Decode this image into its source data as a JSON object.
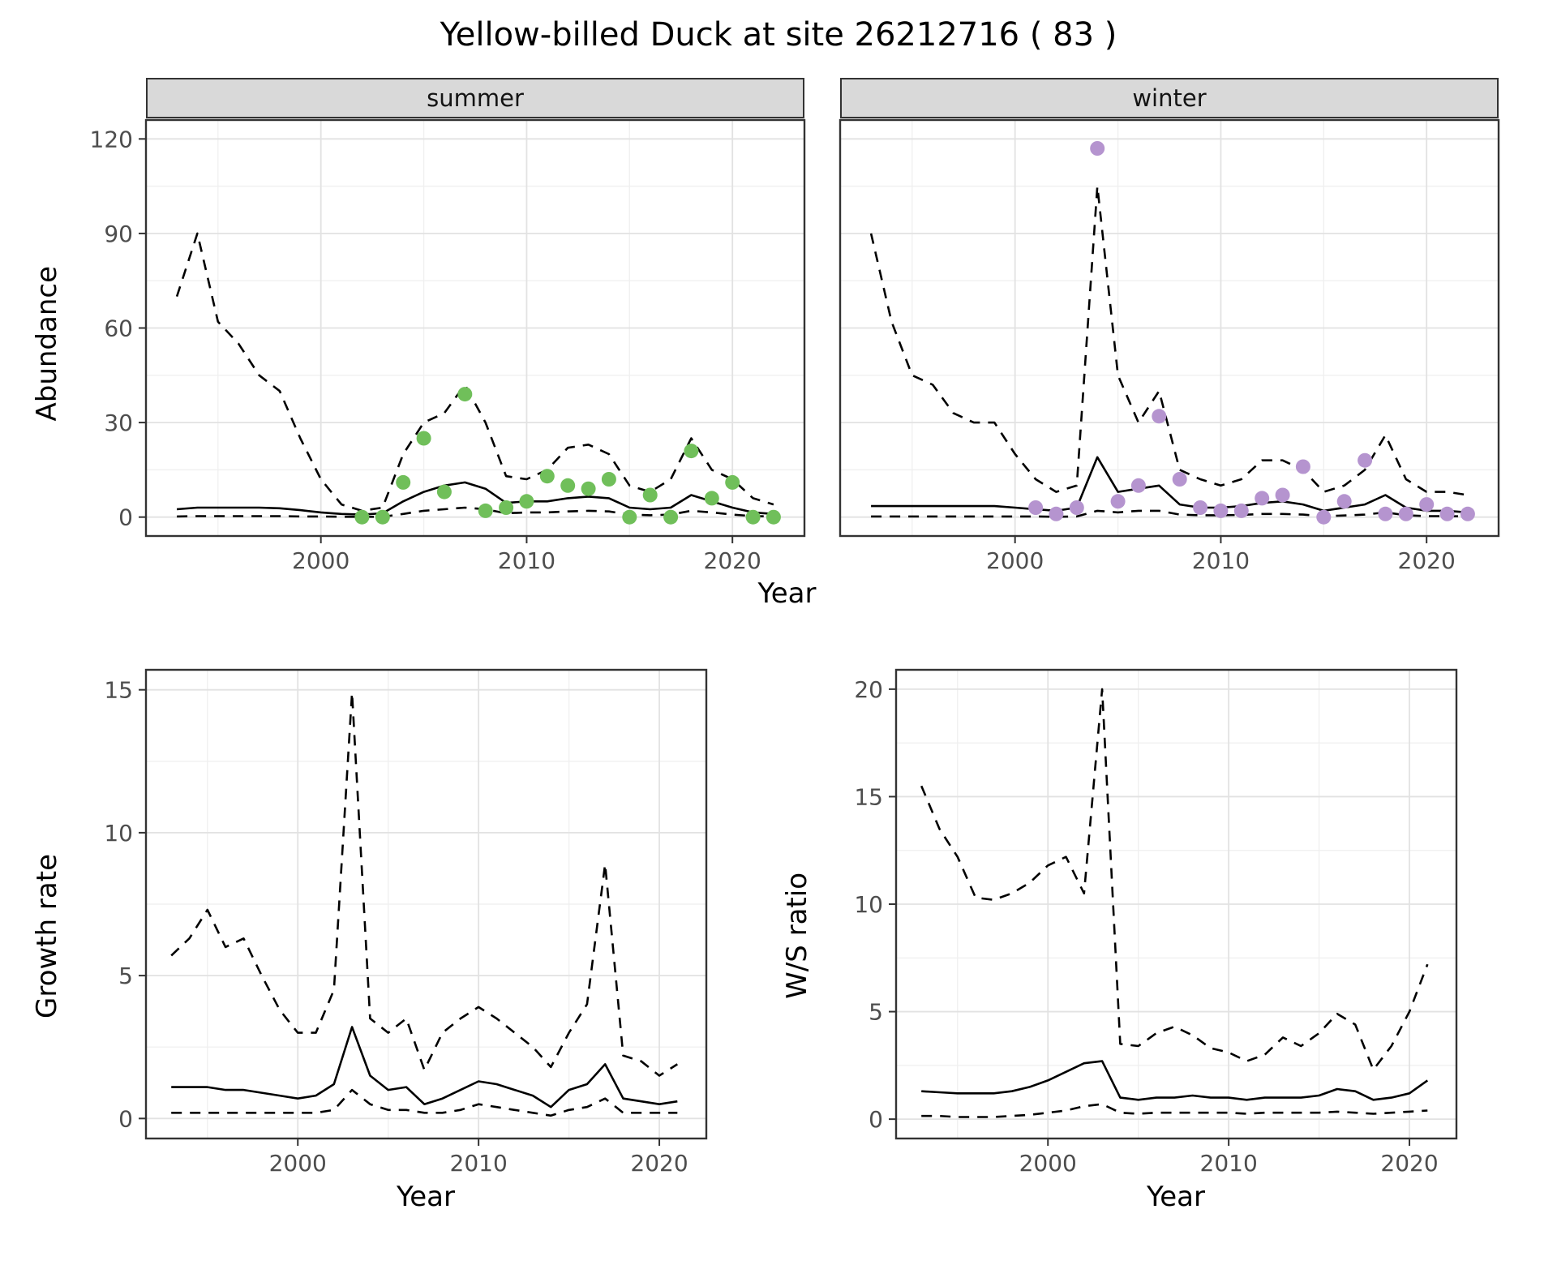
{
  "title": "Yellow-billed Duck at site 26212716 ( 83 )",
  "style": {
    "summer_point_color": "#70bf5a",
    "winter_point_color": "#b594cf",
    "line_color": "#000000",
    "grid_major": "#e2e2e2",
    "grid_minor": "#f0f0f0",
    "panel_border": "#333333",
    "strip_bg": "#d9d9d9",
    "tick_text": "#4d4d4d"
  },
  "chart_data": [
    {
      "id": "abundance-summer",
      "type": "line",
      "facet": "summer",
      "xlabel": "Year",
      "ylabel": "Abundance",
      "xlim": [
        1991.5,
        2023.5
      ],
      "ylim": [
        -6,
        126
      ],
      "xticks": [
        2000,
        2010,
        2020
      ],
      "yticks": [
        0,
        30,
        60,
        90,
        120
      ],
      "x": [
        1993,
        1994,
        1995,
        1996,
        1997,
        1998,
        1999,
        2000,
        2001,
        2002,
        2003,
        2004,
        2005,
        2006,
        2007,
        2008,
        2009,
        2010,
        2011,
        2012,
        2013,
        2014,
        2015,
        2016,
        2017,
        2018,
        2019,
        2020,
        2021,
        2022
      ],
      "series": [
        {
          "name": "upper_95ci",
          "line": "dashed",
          "values": [
            70,
            90,
            62,
            55,
            45,
            40,
            25,
            12,
            4,
            2,
            3,
            20,
            30,
            33,
            42,
            30,
            13,
            12,
            15,
            22,
            23,
            20,
            10,
            8,
            12,
            25,
            15,
            12,
            6,
            4
          ]
        },
        {
          "name": "mean",
          "line": "solid",
          "values": [
            2.5,
            3,
            3,
            3,
            3,
            2.8,
            2.2,
            1.5,
            1,
            0.8,
            1.2,
            5,
            8,
            10,
            11,
            9,
            4.5,
            5,
            5,
            6,
            6.5,
            6,
            3,
            2.5,
            3,
            7,
            5,
            3,
            1.5,
            1
          ]
        },
        {
          "name": "lower_95ci",
          "line": "dashed",
          "values": [
            0.2,
            0.3,
            0.3,
            0.3,
            0.3,
            0.3,
            0.2,
            0.2,
            0.1,
            0.1,
            0.1,
            1,
            2,
            2.5,
            3,
            2.5,
            1.2,
            1.5,
            1.5,
            1.8,
            2,
            1.8,
            0.8,
            0.6,
            0.8,
            2,
            1.5,
            0.8,
            0.3,
            0.2
          ]
        }
      ],
      "points": {
        "name": "observed-counts-summer",
        "color": "#70bf5a",
        "x": [
          2002,
          2003,
          2004,
          2005,
          2006,
          2007,
          2008,
          2009,
          2010,
          2011,
          2012,
          2013,
          2014,
          2015,
          2016,
          2017,
          2018,
          2019,
          2020,
          2021,
          2022
        ],
        "y": [
          0,
          0,
          11,
          25,
          8,
          39,
          2,
          3,
          5,
          13,
          10,
          9,
          12,
          0,
          7,
          0,
          21,
          6,
          11,
          0,
          0
        ]
      }
    },
    {
      "id": "abundance-winter",
      "type": "line",
      "facet": "winter",
      "xlabel": "Year",
      "ylabel": "Abundance",
      "xlim": [
        1991.5,
        2023.5
      ],
      "ylim": [
        -6,
        126
      ],
      "xticks": [
        2000,
        2010,
        2020
      ],
      "yticks": [
        0,
        30,
        60,
        90,
        120
      ],
      "x": [
        1993,
        1994,
        1995,
        1996,
        1997,
        1998,
        1999,
        2000,
        2001,
        2002,
        2003,
        2004,
        2005,
        2006,
        2007,
        2008,
        2009,
        2010,
        2011,
        2012,
        2013,
        2014,
        2015,
        2016,
        2017,
        2018,
        2019,
        2020,
        2021,
        2022
      ],
      "series": [
        {
          "name": "upper_95ci",
          "line": "dashed",
          "values": [
            90,
            62,
            45,
            42,
            33,
            30,
            30,
            20,
            12,
            8,
            10,
            105,
            45,
            30,
            40,
            15,
            12,
            10,
            12,
            18,
            18,
            15,
            8,
            10,
            15,
            26,
            12,
            8,
            8,
            7
          ]
        },
        {
          "name": "mean",
          "line": "solid",
          "values": [
            3.5,
            3.5,
            3.5,
            3.5,
            3.5,
            3.5,
            3.5,
            3,
            2.5,
            2,
            3,
            19,
            8,
            9,
            10,
            4,
            3,
            3,
            3.5,
            4.5,
            5,
            4,
            2,
            3,
            4,
            7,
            3,
            2,
            2,
            1.5
          ]
        },
        {
          "name": "lower_95ci",
          "line": "dashed",
          "values": [
            0.2,
            0.2,
            0.2,
            0.2,
            0.2,
            0.2,
            0.2,
            0.2,
            0.2,
            0.1,
            0.2,
            2,
            1.5,
            2,
            2,
            0.8,
            0.6,
            0.6,
            0.7,
            1,
            1,
            0.8,
            0.3,
            0.5,
            0.8,
            1.5,
            0.6,
            0.3,
            0.3,
            0.2
          ]
        }
      ],
      "points": {
        "name": "observed-counts-winter",
        "color": "#b594cf",
        "x": [
          2001,
          2002,
          2003,
          2004,
          2005,
          2006,
          2007,
          2008,
          2009,
          2010,
          2011,
          2012,
          2013,
          2014,
          2015,
          2016,
          2017,
          2018,
          2019,
          2020,
          2021,
          2022
        ],
        "y": [
          3,
          1,
          3,
          117,
          5,
          10,
          32,
          12,
          3,
          2,
          2,
          6,
          7,
          16,
          0,
          5,
          18,
          1,
          1,
          4,
          1,
          1
        ]
      }
    },
    {
      "id": "growth-rate",
      "type": "line",
      "facet": "",
      "xlabel": "Year",
      "ylabel": "Growth rate",
      "xlim": [
        1991.6,
        2022.6
      ],
      "ylim": [
        -0.7,
        15.7
      ],
      "xticks": [
        2000,
        2010,
        2020
      ],
      "yticks": [
        0,
        5,
        10,
        15
      ],
      "x": [
        1993,
        1994,
        1995,
        1996,
        1997,
        1998,
        1999,
        2000,
        2001,
        2002,
        2003,
        2004,
        2005,
        2006,
        2007,
        2008,
        2009,
        2010,
        2011,
        2012,
        2013,
        2014,
        2015,
        2016,
        2017,
        2018,
        2019,
        2020,
        2021
      ],
      "series": [
        {
          "name": "upper_95ci",
          "line": "dashed",
          "values": [
            5.7,
            6.3,
            7.3,
            6.0,
            6.3,
            5.0,
            3.8,
            3.0,
            3.0,
            4.5,
            14.9,
            3.5,
            3.0,
            3.5,
            1.7,
            3.0,
            3.5,
            3.9,
            3.5,
            3.0,
            2.5,
            1.8,
            3.0,
            4.0,
            8.9,
            2.2,
            2.0,
            1.5,
            1.9
          ]
        },
        {
          "name": "mean",
          "line": "solid",
          "values": [
            1.1,
            1.1,
            1.1,
            1.0,
            1.0,
            0.9,
            0.8,
            0.7,
            0.8,
            1.2,
            3.2,
            1.5,
            1.0,
            1.1,
            0.5,
            0.7,
            1.0,
            1.3,
            1.2,
            1.0,
            0.8,
            0.4,
            1.0,
            1.2,
            1.9,
            0.7,
            0.6,
            0.5,
            0.6
          ]
        },
        {
          "name": "lower_95ci",
          "line": "dashed",
          "values": [
            0.2,
            0.2,
            0.2,
            0.2,
            0.2,
            0.2,
            0.2,
            0.2,
            0.2,
            0.3,
            1.0,
            0.5,
            0.3,
            0.3,
            0.2,
            0.2,
            0.3,
            0.5,
            0.4,
            0.3,
            0.2,
            0.1,
            0.3,
            0.4,
            0.7,
            0.2,
            0.2,
            0.2,
            0.2
          ]
        }
      ]
    },
    {
      "id": "ws-ratio",
      "type": "line",
      "facet": "",
      "xlabel": "Year",
      "ylabel": "W/S ratio",
      "xlim": [
        1991.6,
        2022.6
      ],
      "ylim": [
        -0.9,
        20.9
      ],
      "xticks": [
        2000,
        2010,
        2020
      ],
      "yticks": [
        0,
        5,
        10,
        15,
        20
      ],
      "x": [
        1993,
        1994,
        1995,
        1996,
        1997,
        1998,
        1999,
        2000,
        2001,
        2002,
        2003,
        2004,
        2005,
        2006,
        2007,
        2008,
        2009,
        2010,
        2011,
        2012,
        2013,
        2014,
        2015,
        2016,
        2017,
        2018,
        2019,
        2020,
        2021
      ],
      "series": [
        {
          "name": "upper_95ci",
          "line": "dashed",
          "values": [
            15.5,
            13.5,
            12.2,
            10.3,
            10.2,
            10.5,
            11.0,
            11.8,
            12.2,
            10.5,
            20.0,
            3.5,
            3.4,
            4.0,
            4.3,
            3.9,
            3.3,
            3.1,
            2.7,
            3.0,
            3.8,
            3.4,
            4.0,
            4.9,
            4.4,
            2.3,
            3.4,
            5.0,
            7.2
          ]
        },
        {
          "name": "mean",
          "line": "solid",
          "values": [
            1.3,
            1.25,
            1.2,
            1.2,
            1.2,
            1.3,
            1.5,
            1.8,
            2.2,
            2.6,
            2.7,
            1.0,
            0.9,
            1.0,
            1.0,
            1.1,
            1.0,
            1.0,
            0.9,
            1.0,
            1.0,
            1.0,
            1.1,
            1.4,
            1.3,
            0.9,
            1.0,
            1.2,
            1.8
          ]
        },
        {
          "name": "lower_95ci",
          "line": "dashed",
          "values": [
            0.15,
            0.15,
            0.1,
            0.1,
            0.1,
            0.15,
            0.2,
            0.3,
            0.4,
            0.6,
            0.7,
            0.3,
            0.25,
            0.3,
            0.3,
            0.3,
            0.3,
            0.3,
            0.25,
            0.3,
            0.3,
            0.3,
            0.3,
            0.35,
            0.3,
            0.25,
            0.3,
            0.35,
            0.4
          ]
        }
      ]
    }
  ]
}
